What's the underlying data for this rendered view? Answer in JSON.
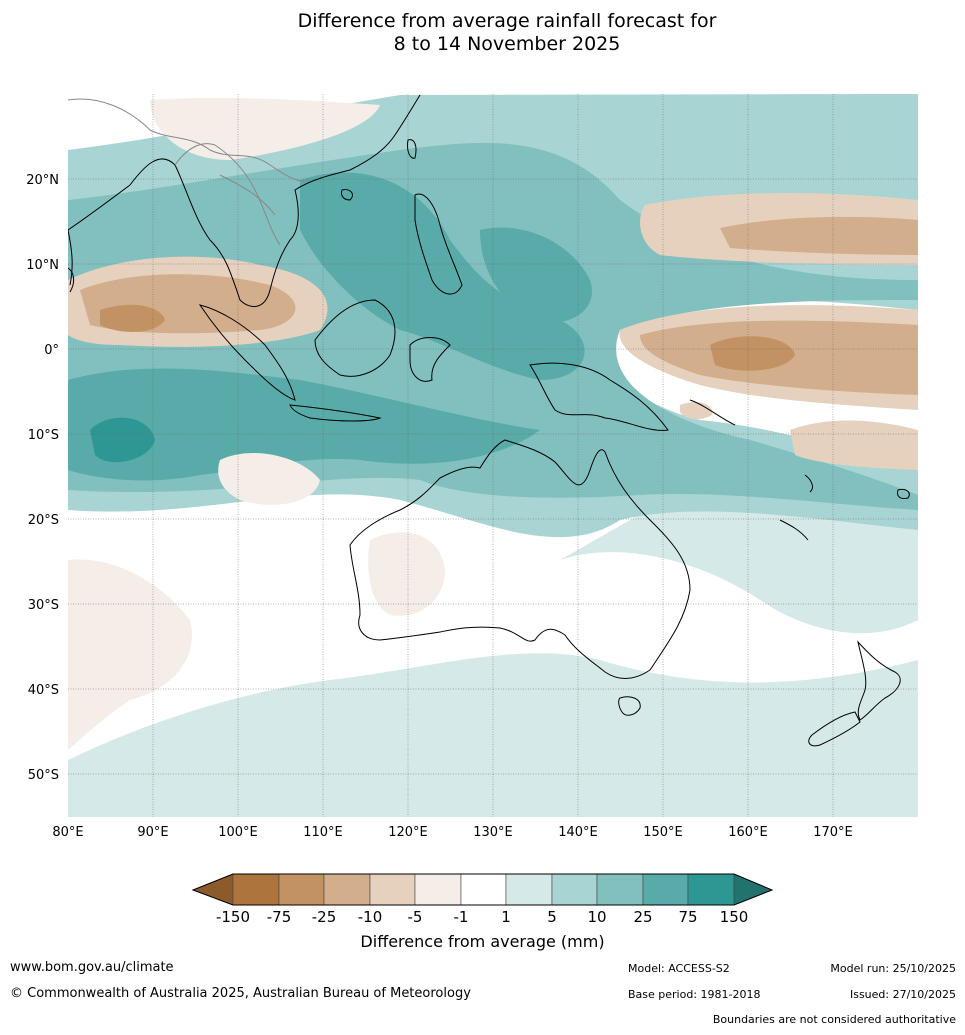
{
  "title": {
    "line1": "Difference from average rainfall forecast for",
    "line2": "8 to 14 November 2025"
  },
  "map": {
    "lat_labels": [
      "20°N",
      "10°N",
      "0°",
      "10°S",
      "20°S",
      "30°S",
      "40°S",
      "50°S"
    ],
    "lon_labels": [
      "80°E",
      "90°E",
      "100°E",
      "110°E",
      "120°E",
      "130°E",
      "140°E",
      "150°E",
      "160°E",
      "170°E"
    ],
    "lat_values": [
      20,
      10,
      0,
      -10,
      -20,
      -30,
      -40,
      -50
    ],
    "lon_values": [
      80,
      90,
      100,
      110,
      120,
      130,
      140,
      150,
      160,
      170
    ],
    "lat_range": [
      -55,
      30
    ],
    "lon_range": [
      80,
      180
    ]
  },
  "colorbar": {
    "title": "Difference from average (mm)",
    "tick_labels": [
      "-150",
      "-75",
      "-25",
      "-10",
      "-5",
      "-1",
      "1",
      "5",
      "10",
      "25",
      "75",
      "150"
    ],
    "colors": [
      "#8c5a2b",
      "#ad743d",
      "#c29263",
      "#d3ae8d",
      "#e6d1bf",
      "#f5ede8",
      "#ffffff",
      "#d5eae8",
      "#a8d5d3",
      "#82c0bf",
      "#58aba9",
      "#2e9793",
      "#22726f"
    ]
  },
  "footer": {
    "url": "www.bom.gov.au/climate",
    "copyright": "© Commonwealth of Australia 2025, Australian Bureau of Meteorology",
    "model": "Model: ACCESS-S2",
    "base_period": "Base period: 1981-2018",
    "model_run": "Model run: 25/10/2025",
    "issued": "Issued: 27/10/2025",
    "disclaimer": "Boundaries are not considered authoritative"
  }
}
